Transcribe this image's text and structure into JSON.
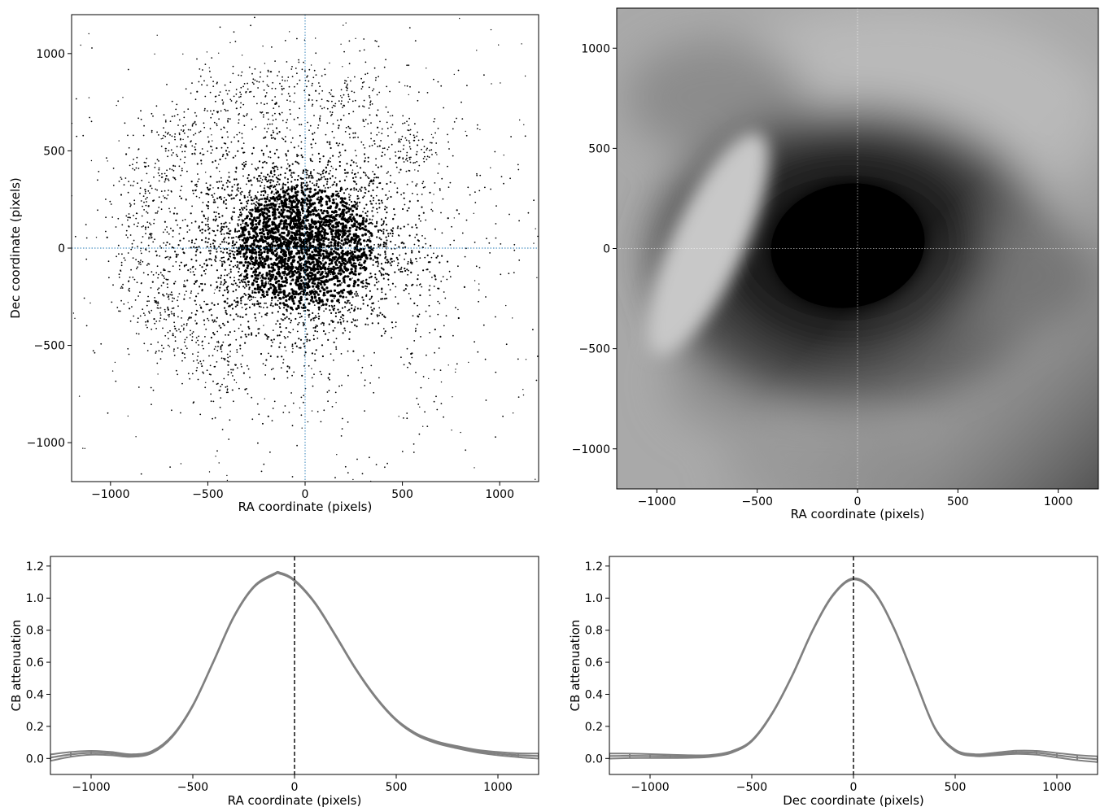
{
  "chart_data": [
    {
      "type": "scatter",
      "id": "scatter",
      "xlabel": "RA coordinate (pixels)",
      "ylabel": "Dec coordinate (pixels)",
      "xlim": [
        -1200,
        1200
      ],
      "ylim": [
        -1200,
        1200
      ],
      "xticks": [
        -1000,
        -500,
        0,
        500,
        1000
      ],
      "xtick_labels": [
        "−1000",
        "−500",
        "0",
        "500",
        "1000"
      ],
      "yticks": [
        -1000,
        -500,
        0,
        500,
        1000
      ],
      "ytick_labels": [
        "−1000",
        "−500",
        "0",
        "500",
        "1000"
      ],
      "crosshair": {
        "x": 0,
        "y": 0,
        "color": "#1f77b4",
        "style": "dotted"
      },
      "point_color": "#000000",
      "distribution": {
        "core": {
          "center": [
            -40,
            20
          ],
          "sigma": [
            260,
            220
          ],
          "count": 3200
        },
        "halo": {
          "center": [
            0,
            0
          ],
          "sigma": [
            520,
            480
          ],
          "count": 1300
        },
        "ring": {
          "center": [
            -350,
            250
          ],
          "radius_x": 780,
          "radius_y": 760,
          "angle_range_deg": [
            30,
            250
          ],
          "count": 900
        },
        "sparse": {
          "count": 180
        }
      }
    },
    {
      "type": "heatmap",
      "id": "attenuation-map",
      "xlabel": "RA coordinate (pixels)",
      "ylabel": "",
      "xlim": [
        -1200,
        1200
      ],
      "ylim": [
        -1200,
        1200
      ],
      "xticks": [
        -1000,
        -500,
        0,
        500,
        1000
      ],
      "xtick_labels": [
        "−1000",
        "−500",
        "0",
        "500",
        "1000"
      ],
      "yticks": [
        -1000,
        -500,
        0,
        500,
        1000
      ],
      "ytick_labels": [
        "−1000",
        "−500",
        "0",
        "500",
        "1000"
      ],
      "colormap": "gray",
      "crosshair": {
        "x": 0,
        "y": 0,
        "color": "#ffffff",
        "style": "dotted"
      }
    },
    {
      "type": "line",
      "id": "ra-profile",
      "xlabel": "RA coordinate (pixels)",
      "ylabel": "CB attenuation",
      "xlim": [
        -1200,
        1200
      ],
      "ylim": [
        -0.1,
        1.26
      ],
      "xticks": [
        -1000,
        -500,
        0,
        500,
        1000
      ],
      "xtick_labels": [
        "−1000",
        "−500",
        "0",
        "500",
        "1000"
      ],
      "yticks": [
        0.0,
        0.2,
        0.4,
        0.6,
        0.8,
        1.0,
        1.2
      ],
      "ytick_labels": [
        "0.0",
        "0.2",
        "0.4",
        "0.6",
        "0.8",
        "1.0",
        "1.2"
      ],
      "vline": {
        "x": 0,
        "style": "dashed",
        "color": "#000000"
      },
      "series": [
        {
          "color": "#808080",
          "x": [
            -1200,
            -1100,
            -1000,
            -900,
            -800,
            -700,
            -600,
            -500,
            -400,
            -300,
            -200,
            -100,
            -70,
            0,
            100,
            200,
            300,
            400,
            500,
            600,
            700,
            800,
            900,
            1000,
            1100,
            1200
          ],
          "y": [
            0.005,
            0.025,
            0.035,
            0.03,
            0.018,
            0.04,
            0.14,
            0.33,
            0.6,
            0.88,
            1.07,
            1.15,
            1.155,
            1.11,
            0.97,
            0.77,
            0.56,
            0.38,
            0.24,
            0.15,
            0.1,
            0.07,
            0.045,
            0.03,
            0.02,
            0.015
          ],
          "band_halfwidth": [
            0.02,
            0.015,
            0.012,
            0.01,
            0.008,
            0.006,
            0.005,
            0.004,
            0.004,
            0.004,
            0.004,
            0.004,
            0.004,
            0.004,
            0.004,
            0.004,
            0.004,
            0.004,
            0.004,
            0.005,
            0.006,
            0.007,
            0.008,
            0.01,
            0.012,
            0.016
          ]
        }
      ]
    },
    {
      "type": "line",
      "id": "dec-profile",
      "xlabel": "Dec coordinate (pixels)",
      "ylabel": "CB attenuation",
      "xlim": [
        -1200,
        1200
      ],
      "ylim": [
        -0.1,
        1.26
      ],
      "xticks": [
        -1000,
        -500,
        0,
        500,
        1000
      ],
      "xtick_labels": [
        "−1000",
        "−500",
        "0",
        "500",
        "1000"
      ],
      "yticks": [
        0.0,
        0.2,
        0.4,
        0.6,
        0.8,
        1.0,
        1.2
      ],
      "ytick_labels": [
        "0.0",
        "0.2",
        "0.4",
        "0.6",
        "0.8",
        "1.0",
        "1.2"
      ],
      "vline": {
        "x": 0,
        "style": "dashed",
        "color": "#000000"
      },
      "series": [
        {
          "color": "#808080",
          "x": [
            -1200,
            -1100,
            -1000,
            -900,
            -800,
            -700,
            -600,
            -500,
            -400,
            -300,
            -200,
            -100,
            0,
            100,
            200,
            300,
            400,
            500,
            600,
            700,
            800,
            900,
            1000,
            1100,
            1200
          ],
          "y": [
            0.015,
            0.016,
            0.015,
            0.013,
            0.012,
            0.016,
            0.04,
            0.11,
            0.28,
            0.52,
            0.8,
            1.02,
            1.12,
            1.04,
            0.81,
            0.5,
            0.19,
            0.05,
            0.02,
            0.028,
            0.038,
            0.035,
            0.02,
            0.005,
            -0.005
          ],
          "band_halfwidth": [
            0.016,
            0.014,
            0.012,
            0.01,
            0.008,
            0.006,
            0.005,
            0.004,
            0.004,
            0.004,
            0.004,
            0.004,
            0.004,
            0.004,
            0.004,
            0.004,
            0.004,
            0.005,
            0.006,
            0.008,
            0.01,
            0.012,
            0.014,
            0.016,
            0.018
          ]
        }
      ]
    }
  ]
}
